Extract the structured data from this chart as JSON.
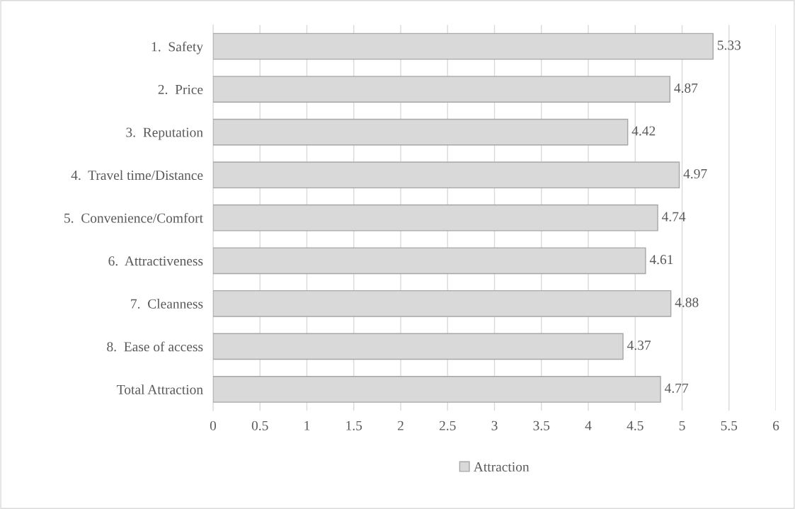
{
  "chart_data": {
    "type": "bar",
    "orientation": "horizontal",
    "categories": [
      "1.  Safety",
      "2.  Price",
      "3.  Reputation",
      "4.  Travel time/Distance",
      "5.  Convenience/Comfort",
      "6.  Attractiveness",
      "7.  Cleanness",
      "8.  Ease of access",
      "Total Attraction"
    ],
    "series": [
      {
        "name": "Attraction",
        "color": "#d9d9d9",
        "values": [
          5.33,
          4.87,
          4.42,
          4.97,
          4.74,
          4.61,
          4.88,
          4.37,
          4.77
        ]
      }
    ],
    "xlim": [
      0,
      6
    ],
    "xticks": [
      0,
      0.5,
      1,
      1.5,
      2,
      2.5,
      3,
      3.5,
      4,
      4.5,
      5,
      5.5,
      6
    ],
    "grid": "x",
    "legend": "bottom",
    "data_labels": true
  }
}
